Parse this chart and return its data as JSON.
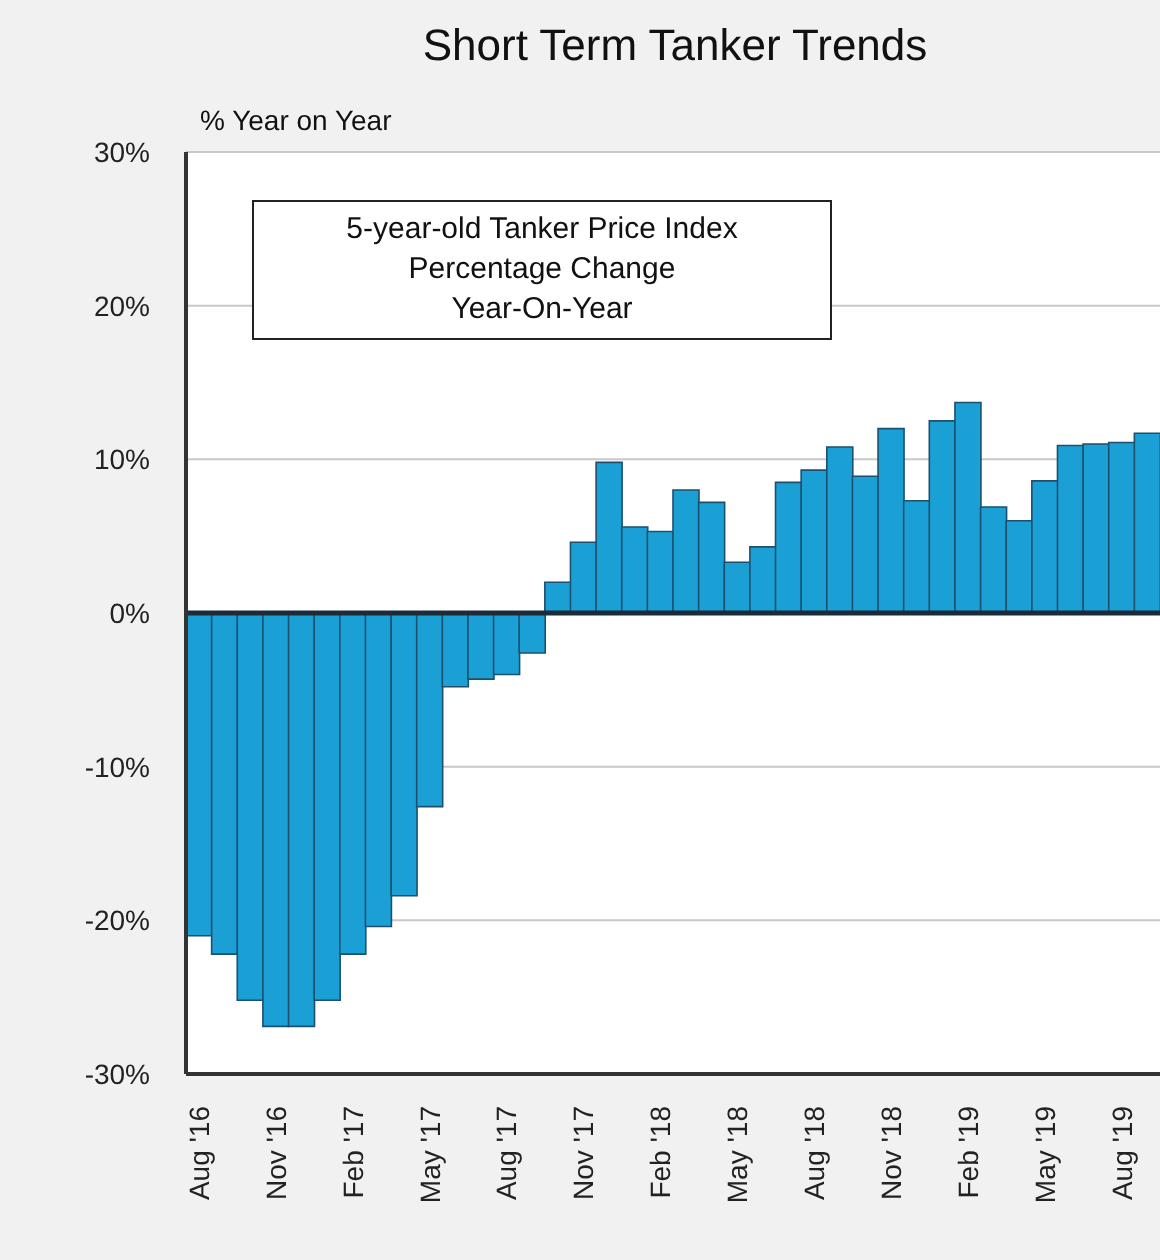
{
  "chart_data": {
    "type": "bar",
    "title": "Short Term Tanker Trends",
    "ylabel": "% Year on Year",
    "annotations": [
      "5-year-old Tanker Price Index\nPercentage Change\nYear-On-Year"
    ],
    "categories": [
      "Aug '16",
      null,
      null,
      "Nov '16",
      null,
      null,
      "Feb '17",
      null,
      null,
      "May '17",
      null,
      null,
      "Aug '17",
      null,
      null,
      "Nov '17",
      null,
      null,
      "Feb '18",
      null,
      null,
      "May '18",
      null,
      null,
      "Aug '18",
      null,
      null,
      "Nov '18",
      null,
      null,
      "Feb '19",
      null,
      null,
      "May '19",
      null,
      null,
      "Aug '19",
      null
    ],
    "values": [
      -21,
      -22.2,
      -25.2,
      -26.9,
      -26.9,
      -25.2,
      -22.2,
      -20.4,
      -18.4,
      -12.6,
      -4.8,
      -4.3,
      -4.0,
      -2.6,
      2.0,
      4.6,
      9.8,
      5.6,
      5.3,
      8.0,
      7.2,
      3.3,
      4.3,
      8.5,
      9.3,
      10.8,
      8.9,
      12.0,
      7.3,
      12.5,
      13.7,
      6.9,
      6.0,
      8.6,
      10.9,
      11.0,
      11.1,
      11.7
    ],
    "color": "#1ba0d6",
    "ylim": [
      -30,
      30
    ],
    "yticks": [
      {
        "value": -30,
        "label": "-30%"
      },
      {
        "value": -20,
        "label": "-20%"
      },
      {
        "value": -10,
        "label": "-10%"
      },
      {
        "value": 0,
        "label": "0%"
      },
      {
        "value": 10,
        "label": "10%"
      },
      {
        "value": 20,
        "label": "20%"
      },
      {
        "value": 30,
        "label": "30%"
      }
    ],
    "grid": "y",
    "ref_lines": [
      {
        "axis": "y",
        "value": 0,
        "color": "#1c2b3a"
      }
    ]
  }
}
